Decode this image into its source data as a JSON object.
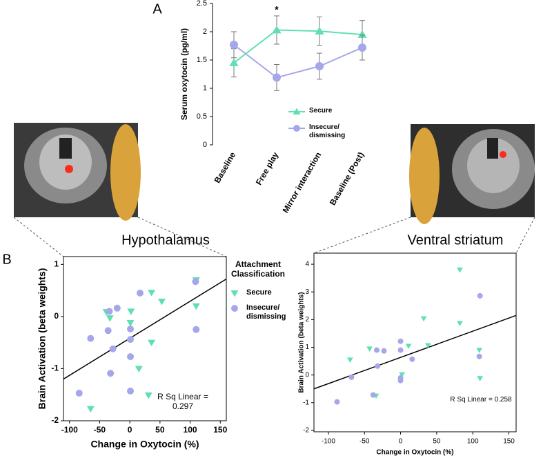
{
  "figure_labels": {
    "panel_a": "A",
    "panel_b": "B",
    "region_left": "Hypothalamus",
    "region_right": "Ventral striatum"
  },
  "chart_data": [
    {
      "type": "line",
      "ylabel": "Serum oxytocin (pg/ml)",
      "categories": [
        "Baseline",
        "Free play",
        "Mirror interaction",
        "Baseline (Post)"
      ],
      "ylim": [
        0,
        2.5
      ],
      "yticks": [
        0,
        0.5,
        1,
        1.5,
        2,
        2.5
      ],
      "annotations": [
        {
          "text": "*",
          "category": 1,
          "y": 2.38
        }
      ],
      "series": [
        {
          "name": "Secure",
          "color": "#5fe0b0",
          "marker": "triangle",
          "values": [
            1.45,
            2.03,
            2.01,
            1.95
          ],
          "errors": [
            0.25,
            0.25,
            0.25,
            0.25
          ]
        },
        {
          "name": "Insecure/ dismissing",
          "color": "#a6a6ea",
          "marker": "circle",
          "values": [
            1.77,
            1.19,
            1.39,
            1.72
          ],
          "errors": [
            0.23,
            0.23,
            0.23,
            0.22
          ]
        }
      ]
    },
    {
      "type": "scatter",
      "xlabel": "Change in Oxytocin (%)",
      "ylabel": "Brain Activation (beta weights)",
      "legend_title": "Attachment Classification",
      "annotation": "R Sq Linear = 0.297",
      "xlim": [
        -110,
        160
      ],
      "xticks": [
        -100,
        -50,
        0,
        50,
        100,
        150
      ],
      "ylim": [
        -2,
        1.15
      ],
      "yticks": [
        -2,
        -1,
        0,
        1
      ],
      "fit_line": {
        "x": [
          -110,
          160
        ],
        "y": [
          -1.2,
          0.72
        ]
      },
      "series": [
        {
          "name": "Secure",
          "color": "#5fe0b0",
          "marker": "triangle-down",
          "x": [
            110,
            36,
            53,
            -39,
            -33,
            2,
            1,
            36,
            15,
            31,
            -65,
            110
          ],
          "y": [
            0.7,
            0.46,
            0.29,
            0.09,
            -0.03,
            0.1,
            -0.12,
            -0.5,
            -1.0,
            -1.51,
            -1.77,
            0.2
          ]
        },
        {
          "name": "Insecure/ dismissing",
          "color": "#a6a6ea",
          "marker": "circle",
          "x": [
            109,
            17,
            -21,
            -34,
            -36,
            1,
            1,
            -28,
            1,
            -65,
            -32,
            110,
            1,
            -84
          ],
          "y": [
            0.67,
            0.45,
            0.16,
            0.1,
            -0.27,
            -0.24,
            -0.44,
            -0.62,
            -0.77,
            -0.42,
            -1.09,
            -0.25,
            -1.43,
            -1.47
          ]
        }
      ]
    },
    {
      "type": "scatter",
      "xlabel": "Change in Oxytocin (%)",
      "ylabel": "Brain Activation (beta weights)",
      "annotation": "R Sq Linear = 0.258",
      "xlim": [
        -120,
        160
      ],
      "xticks": [
        -100,
        -50,
        0,
        50,
        100,
        150
      ],
      "ylim": [
        -2.05,
        4.4
      ],
      "yticks": [
        -2,
        -1,
        0,
        1,
        2,
        3,
        4
      ],
      "fit_line": {
        "x": [
          -120,
          160
        ],
        "y": [
          -0.5,
          2.15
        ]
      },
      "series": [
        {
          "color": "#5fe0b0",
          "marker": "triangle-down",
          "x": [
            82,
            32,
            82,
            109,
            110,
            38,
            11,
            2,
            -43,
            -70,
            -34
          ],
          "y": [
            3.8,
            2.04,
            1.87,
            0.9,
            -0.12,
            1.07,
            1.05,
            0.02,
            0.95,
            0.55,
            -0.75
          ]
        },
        {
          "color": "#a6a6ea",
          "marker": "circle",
          "x": [
            110,
            109,
            0,
            0,
            0,
            0,
            16,
            -33,
            -23,
            -32,
            -68,
            -38,
            -88
          ],
          "y": [
            2.86,
            0.67,
            1.22,
            0.9,
            -0.1,
            -0.2,
            0.57,
            0.9,
            0.87,
            0.32,
            -0.08,
            -0.72,
            -0.97
          ]
        }
      ]
    }
  ]
}
